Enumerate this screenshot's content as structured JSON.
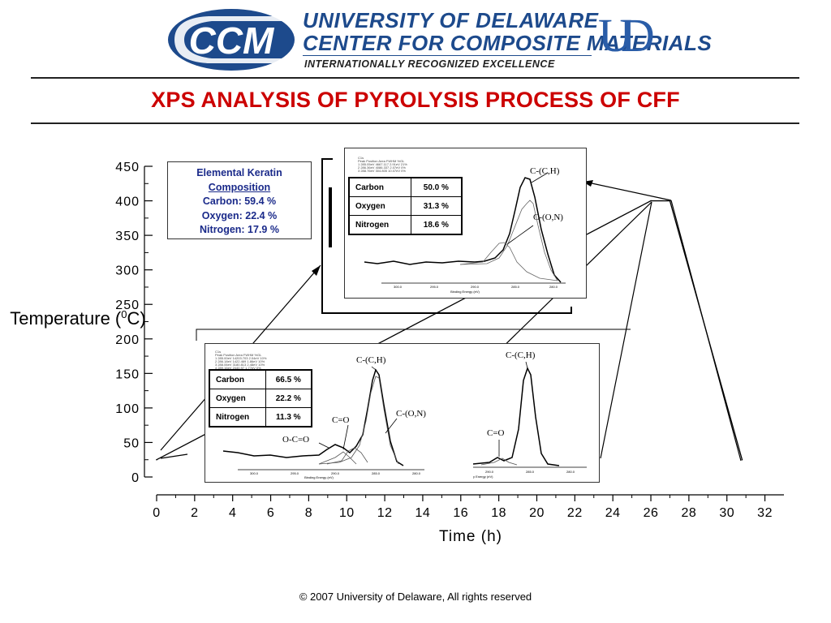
{
  "header": {
    "logo_text": "CCM",
    "university": "UNIVERSITY OF DELAWARE",
    "center": "CENTER FOR COMPOSITE MATERIALS",
    "tagline": "INTERNATIONALLY RECOGNIZED EXCELLENCE",
    "ud_logo": "UD"
  },
  "title": "XPS ANALYSIS OF PYROLYSIS PROCESS OF CFF",
  "composition": {
    "heading": "Elemental Keratin",
    "subheading": "Composition",
    "lines": [
      "Carbon: 59.4 %",
      "Oxygen: 22.4 %",
      "Nitrogen: 17.9 %"
    ]
  },
  "inset_top": {
    "table": [
      {
        "element": "Carbon",
        "value": "50.0 %"
      },
      {
        "element": "Oxygen",
        "value": "31.3 %"
      },
      {
        "element": "Nitrogen",
        "value": "18.6 %"
      }
    ],
    "peak_labels": [
      "C-(C,H)",
      "C-(O,N)"
    ],
    "header_lines": [
      "C1s",
      "Peak     Position     Area     FWHM     %GL",
      "1        285.05eV    4667.117   2.91eV   21%",
      "2        286.36eV    4086.337   2.07eV   0%",
      "3        288.76eV    304.805   10.07eV  0%"
    ],
    "xlabel": "Binding Energy (eV)",
    "ticks": [
      "300.0",
      "295.0",
      "290.0",
      "285.0",
      "280.0"
    ]
  },
  "inset_bottom": {
    "table": [
      {
        "element": "Carbon",
        "value": "66.5 %"
      },
      {
        "element": "Oxygen",
        "value": "22.2 %"
      },
      {
        "element": "Nitrogen",
        "value": "11.3 %"
      }
    ],
    "peak_labels": [
      "C-(C,H)",
      "C-(O,N)",
      "C=O",
      "O-C=O"
    ],
    "right_peak_labels": [
      "C-(C,H)",
      "C=O"
    ],
    "header_lines": [
      "C1s",
      "Peak     Position     Area     FWHM     %GL",
      "1        285.00eV    14203.703   2.04eV   10%",
      "2        286.18eV    1422.469   1.86eV   10%",
      "3        288.06eV    3180.813   2.48eV   10%",
      "4        289.16eV    2440.97    1.77eV   0%"
    ],
    "xlabel": "Binding Energy (eV)",
    "xlabel_right": "y Energy (eV)",
    "ticks": [
      "300.0",
      "295.0",
      "290.0",
      "285.0",
      "280.0"
    ],
    "ticks_right": [
      "290.0",
      "285.0",
      "280.0"
    ]
  },
  "chart_data": {
    "type": "line",
    "title": "",
    "xlabel": "Time (h)",
    "ylabel": "Temperature (0C)",
    "xlim": [
      0,
      33
    ],
    "ylim": [
      0,
      450
    ],
    "xticks": [
      0,
      2,
      4,
      6,
      8,
      10,
      12,
      14,
      16,
      18,
      20,
      22,
      24,
      26,
      28,
      30,
      32
    ],
    "yticks": [
      0,
      50,
      100,
      150,
      200,
      250,
      300,
      350,
      400,
      450
    ],
    "series": [
      {
        "x": [
          0,
          26,
          27,
          30.8
        ],
        "y": [
          25,
          400,
          400,
          25
        ]
      }
    ]
  },
  "copyright": "© 2007  University of Delaware, All rights reserved",
  "colors": {
    "title": "#cc0000",
    "brand": "#1d4a8c",
    "composition_text": "#1a2a8a"
  }
}
